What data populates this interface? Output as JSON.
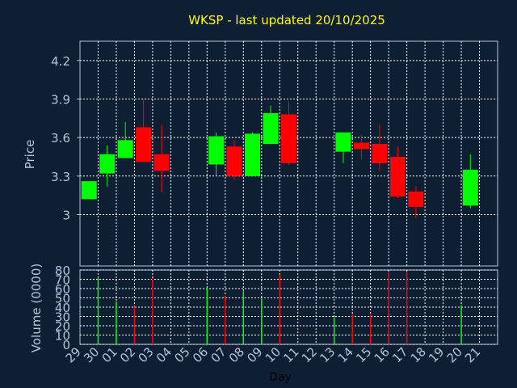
{
  "colors": {
    "background": "#0f1f33",
    "plot_background": "#0f1f33",
    "frame": "#b0c4de",
    "grid": "#ffffff",
    "up": "#00ff00",
    "down": "#ff0000",
    "title": "#ffff00",
    "text": "#b0c4de"
  },
  "chart_data": [
    {
      "type": "candlestick",
      "title": "WKSP - last updated 20/10/2025",
      "ylabel": "Price",
      "ylim": [
        2.6,
        4.35
      ],
      "yticks": [
        3,
        3.3,
        3.6,
        3.9,
        4.2
      ],
      "ytick_labels": [
        "3",
        "3.3",
        "3.6",
        "3.9",
        "4.2"
      ],
      "grid": true,
      "x_slots": [
        "29",
        "30",
        "01",
        "02",
        "03",
        "04",
        "05",
        "06",
        "07",
        "08",
        "09",
        "10",
        "11",
        "12",
        "13",
        "14",
        "15",
        "16",
        "17",
        "18",
        "19",
        "20",
        "21"
      ],
      "candles": [
        {
          "x": "29",
          "open": 3.12,
          "high": 3.26,
          "low": 3.12,
          "close": 3.26
        },
        {
          "x": "30",
          "open": 3.32,
          "high": 3.54,
          "low": 3.22,
          "close": 3.47
        },
        {
          "x": "01",
          "open": 3.44,
          "high": 3.72,
          "low": 3.44,
          "close": 3.58
        },
        {
          "x": "02",
          "open": 3.68,
          "high": 3.9,
          "low": 3.41,
          "close": 3.41
        },
        {
          "x": "03",
          "open": 3.47,
          "high": 3.7,
          "low": 3.17,
          "close": 3.34
        },
        {
          "x": "06",
          "open": 3.39,
          "high": 3.64,
          "low": 3.3,
          "close": 3.61
        },
        {
          "x": "07",
          "open": 3.53,
          "high": 3.58,
          "low": 3.27,
          "close": 3.3
        },
        {
          "x": "08",
          "open": 3.3,
          "high": 3.64,
          "low": 3.3,
          "close": 3.63
        },
        {
          "x": "09",
          "open": 3.55,
          "high": 3.85,
          "low": 3.55,
          "close": 3.79
        },
        {
          "x": "10",
          "open": 3.78,
          "high": 3.88,
          "low": 3.39,
          "close": 3.4
        },
        {
          "x": "13",
          "open": 3.49,
          "high": 3.64,
          "low": 3.4,
          "close": 3.64
        },
        {
          "x": "14",
          "open": 3.56,
          "high": 3.62,
          "low": 3.43,
          "close": 3.51
        },
        {
          "x": "15",
          "open": 3.55,
          "high": 3.7,
          "low": 3.34,
          "close": 3.4
        },
        {
          "x": "16",
          "open": 3.45,
          "high": 3.53,
          "low": 3.13,
          "close": 3.14
        },
        {
          "x": "17",
          "open": 3.18,
          "high": 3.22,
          "low": 2.97,
          "close": 3.06
        },
        {
          "x": "20",
          "open": 3.07,
          "high": 3.47,
          "low": 3.05,
          "close": 3.35
        }
      ]
    },
    {
      "type": "bar",
      "ylabel": "Volume (0000)",
      "xlabel": "Day",
      "ylim": [
        0,
        80
      ],
      "yticks": [
        0,
        10,
        20,
        30,
        40,
        50,
        60,
        70,
        80
      ],
      "ytick_labels": [
        "0",
        "10",
        "20",
        "30",
        "40",
        "50",
        "60",
        "70",
        "80"
      ],
      "grid": true,
      "categories": [
        "29",
        "30",
        "01",
        "02",
        "03",
        "04",
        "05",
        "06",
        "07",
        "08",
        "09",
        "10",
        "11",
        "12",
        "13",
        "14",
        "15",
        "16",
        "17",
        "18",
        "19",
        "20",
        "21"
      ],
      "bars": [
        {
          "x": "30",
          "value": 72,
          "direction": "up"
        },
        {
          "x": "01",
          "value": 46,
          "direction": "up"
        },
        {
          "x": "02",
          "value": 41,
          "direction": "down"
        },
        {
          "x": "03",
          "value": 71,
          "direction": "down"
        },
        {
          "x": "06",
          "value": 61,
          "direction": "up"
        },
        {
          "x": "07",
          "value": 52,
          "direction": "down"
        },
        {
          "x": "08",
          "value": 57,
          "direction": "up"
        },
        {
          "x": "09",
          "value": 49,
          "direction": "up"
        },
        {
          "x": "10",
          "value": 75,
          "direction": "down"
        },
        {
          "x": "13",
          "value": 29,
          "direction": "up"
        },
        {
          "x": "14",
          "value": 32,
          "direction": "down"
        },
        {
          "x": "15",
          "value": 32,
          "direction": "down"
        },
        {
          "x": "16",
          "value": 78,
          "direction": "down"
        },
        {
          "x": "17",
          "value": 78,
          "direction": "down"
        },
        {
          "x": "20",
          "value": 42,
          "direction": "up"
        }
      ]
    }
  ]
}
